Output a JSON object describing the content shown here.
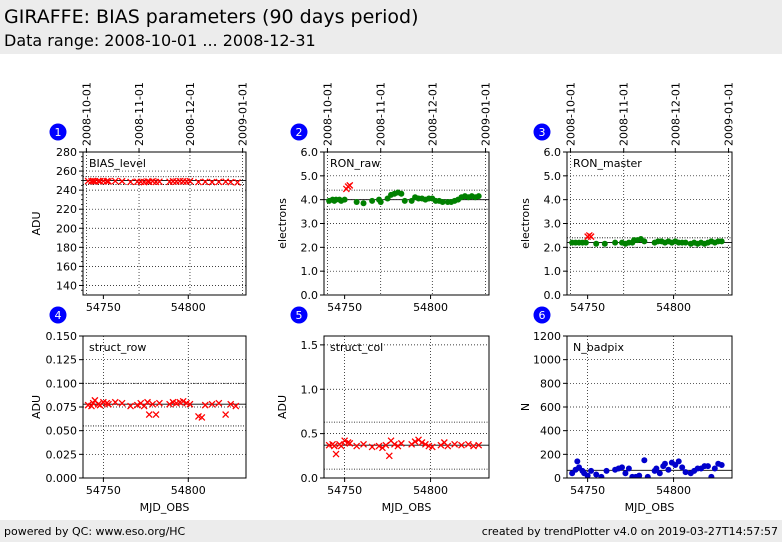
{
  "page": {
    "title": "GIRAFFE: BIAS parameters (90 days period)",
    "subtitle": "Data range: 2008-10-01 ... 2008-12-31",
    "footer_left": "powered by QC: www.eso.org/HC",
    "footer_right": "created by trendPlotter v4.0 on 2019-03-27T14:57:57"
  },
  "colors": {
    "badge": "#0000ff",
    "red": "#ff0000",
    "green": "#008000",
    "blue": "#0000cc"
  },
  "chart_data": [
    {
      "type": "scatter",
      "number": "1",
      "label": "BIAS_level",
      "ylabel": "ADU",
      "xlabel": "",
      "xlim": [
        54738,
        54834
      ],
      "ylim": [
        130,
        280
      ],
      "yticks": [
        140,
        160,
        180,
        200,
        220,
        240,
        260,
        280
      ],
      "ytick_labels": [
        "140",
        "160",
        "180",
        "200",
        "220",
        "240",
        "260",
        "280"
      ],
      "xticks": [
        54750,
        54800
      ],
      "xtick_labels": [
        "54750",
        "54800"
      ],
      "top_ticks": [
        54740,
        54771,
        54801,
        54832
      ],
      "top_tick_labels": [
        "2008-10-01",
        "2008-11-01",
        "2008-12-01",
        "2009-01-01"
      ],
      "hlines": [
        250,
        246,
        254
      ],
      "color": "#ff0000",
      "marker": "x",
      "x": [
        54741,
        54743,
        54744,
        54745,
        54747,
        54748,
        54750,
        54752,
        54753,
        54757,
        54761,
        54766,
        54770,
        54772,
        54774,
        54776,
        54777,
        54779,
        54781,
        54783,
        54789,
        54791,
        54793,
        54795,
        54797,
        54799,
        54801,
        54806,
        54810,
        54814,
        54818,
        54822,
        54825,
        54829
      ],
      "y": [
        249.5,
        249.4,
        249.6,
        249.2,
        249.5,
        249.3,
        249.6,
        249.4,
        249.2,
        249.5,
        249.3,
        248.6,
        248.9,
        248.7,
        248.4,
        249.1,
        248.8,
        249.3,
        248.6,
        248.9,
        248.7,
        249.2,
        249.0,
        249.4,
        249.2,
        249.0,
        249.3,
        248.5,
        248.7,
        248.4,
        248.6,
        248.9,
        248.3,
        248.1
      ]
    },
    {
      "type": "scatter",
      "number": "2",
      "label": "RON_raw",
      "ylabel": "electrons",
      "xlabel": "",
      "xlim": [
        54738,
        54834
      ],
      "ylim": [
        0,
        6
      ],
      "yticks": [
        0,
        1,
        2,
        3,
        4,
        5,
        6
      ],
      "ytick_labels": [
        "0.0",
        "1.0",
        "2.0",
        "3.0",
        "4.0",
        "5.0",
        "6.0"
      ],
      "xticks": [
        54750,
        54800
      ],
      "xtick_labels": [
        "54750",
        "54800"
      ],
      "top_ticks": [
        54740,
        54771,
        54801,
        54832
      ],
      "top_tick_labels": [
        "2008-10-01",
        "2008-11-01",
        "2008-12-01",
        "2009-01-01"
      ],
      "hlines": [
        4.0,
        3.6,
        4.4
      ],
      "color": "#008000",
      "marker": "o",
      "x": [
        54741,
        54743,
        54744,
        54745,
        54747,
        54748,
        54750,
        54757,
        54761,
        54766,
        54770,
        54771,
        54775,
        54777,
        54779,
        54781,
        54783,
        54785,
        54789,
        54791,
        54793,
        54795,
        54797,
        54799,
        54801,
        54803,
        54805,
        54807,
        54810,
        54812,
        54814,
        54816,
        54818,
        54820,
        54822,
        54824,
        54826,
        54828
      ],
      "y": [
        3.95,
        4.0,
        3.95,
        4.0,
        4.0,
        3.95,
        4.0,
        3.9,
        3.85,
        3.95,
        4.0,
        3.9,
        4.05,
        4.2,
        4.25,
        4.3,
        4.25,
        3.95,
        3.95,
        4.1,
        4.05,
        4.05,
        4.0,
        4.05,
        4.05,
        3.95,
        3.95,
        3.9,
        3.9,
        3.9,
        3.95,
        4.0,
        4.1,
        4.15,
        4.1,
        4.15,
        4.1,
        4.15
      ],
      "outliers": {
        "x": [
          54751,
          54752,
          54753
        ],
        "y": [
          4.45,
          4.55,
          4.6
        ],
        "color": "#ff0000",
        "marker": "x"
      }
    },
    {
      "type": "scatter",
      "number": "3",
      "label": "RON_master",
      "ylabel": "electrons",
      "xlabel": "",
      "xlim": [
        54738,
        54834
      ],
      "ylim": [
        0,
        6
      ],
      "yticks": [
        0,
        1,
        2,
        3,
        4,
        5,
        6
      ],
      "ytick_labels": [
        "0.0",
        "1.0",
        "2.0",
        "3.0",
        "4.0",
        "5.0",
        "6.0"
      ],
      "xticks": [
        54750,
        54800
      ],
      "xtick_labels": [
        "54750",
        "54800"
      ],
      "top_ticks": [
        54740,
        54771,
        54801,
        54832
      ],
      "top_tick_labels": [
        "2008-10-01",
        "2008-11-01",
        "2008-12-01",
        "2009-01-01"
      ],
      "hlines": [
        2.2,
        2.0,
        2.4
      ],
      "color": "#008000",
      "marker": "o",
      "x": [
        54741,
        54743,
        54745,
        54747,
        54749,
        54755,
        54760,
        54766,
        54770,
        54772,
        54774,
        54776,
        54777,
        54779,
        54781,
        54783,
        54789,
        54791,
        54793,
        54795,
        54797,
        54799,
        54801,
        54803,
        54805,
        54807,
        54810,
        54812,
        54814,
        54816,
        54818,
        54820,
        54822,
        54824,
        54826,
        54828
      ],
      "y": [
        2.2,
        2.2,
        2.2,
        2.2,
        2.2,
        2.15,
        2.15,
        2.2,
        2.2,
        2.15,
        2.2,
        2.2,
        2.3,
        2.3,
        2.35,
        2.25,
        2.2,
        2.25,
        2.25,
        2.2,
        2.25,
        2.2,
        2.25,
        2.2,
        2.2,
        2.2,
        2.15,
        2.2,
        2.15,
        2.2,
        2.15,
        2.2,
        2.25,
        2.2,
        2.25,
        2.25
      ],
      "outliers": {
        "x": [
          54750,
          54751,
          54752
        ],
        "y": [
          2.45,
          2.5,
          2.45
        ],
        "color": "#ff0000",
        "marker": "x"
      }
    },
    {
      "type": "scatter",
      "number": "4",
      "label": "struct_row",
      "ylabel": "ADU",
      "xlabel": "MJD_OBS",
      "xlim": [
        54738,
        54834
      ],
      "ylim": [
        0,
        0.15
      ],
      "yticks": [
        0,
        0.025,
        0.05,
        0.075,
        0.1,
        0.125,
        0.15
      ],
      "ytick_labels": [
        "0.000",
        "0.025",
        "0.050",
        "0.075",
        "0.100",
        "0.125",
        "0.150"
      ],
      "xticks": [
        54750,
        54800
      ],
      "xtick_labels": [
        "54750",
        "54800"
      ],
      "hlines": [
        0.078,
        0.055,
        0.1
      ],
      "color": "#ff0000",
      "marker": "x",
      "x": [
        54741,
        54743,
        54744,
        54745,
        54747,
        54748,
        54750,
        54752,
        54753,
        54757,
        54761,
        54766,
        54770,
        54772,
        54774,
        54776,
        54777,
        54779,
        54781,
        54783,
        54789,
        54791,
        54793,
        54795,
        54797,
        54799,
        54801,
        54806,
        54808,
        54810,
        54814,
        54818,
        54822,
        54825,
        54828
      ],
      "y": [
        0.077,
        0.076,
        0.079,
        0.082,
        0.078,
        0.077,
        0.08,
        0.079,
        0.078,
        0.08,
        0.079,
        0.076,
        0.077,
        0.079,
        0.076,
        0.08,
        0.067,
        0.078,
        0.067,
        0.079,
        0.078,
        0.08,
        0.079,
        0.08,
        0.081,
        0.079,
        0.078,
        0.065,
        0.064,
        0.077,
        0.078,
        0.079,
        0.067,
        0.078,
        0.076
      ]
    },
    {
      "type": "scatter",
      "number": "5",
      "label": "struct_col",
      "ylabel": "ADU",
      "xlabel": "MJD_OBS",
      "xlim": [
        54738,
        54834
      ],
      "ylim": [
        0,
        1.6
      ],
      "yticks": [
        0,
        0.5,
        1.0,
        1.5
      ],
      "ytick_labels": [
        "0.0",
        "0.5",
        "1.0",
        "1.5"
      ],
      "xticks": [
        54750,
        54800
      ],
      "xtick_labels": [
        "54750",
        "54800"
      ],
      "hlines": [
        0.37,
        0.1,
        0.63
      ],
      "color": "#ff0000",
      "marker": "x",
      "x": [
        54741,
        54743,
        54744,
        54745,
        54747,
        54748,
        54750,
        54752,
        54753,
        54757,
        54761,
        54766,
        54770,
        54772,
        54774,
        54776,
        54777,
        54779,
        54781,
        54783,
        54789,
        54791,
        54793,
        54795,
        54797,
        54799,
        54801,
        54806,
        54808,
        54810,
        54814,
        54818,
        54822,
        54825,
        54828
      ],
      "y": [
        0.37,
        0.38,
        0.36,
        0.27,
        0.38,
        0.36,
        0.42,
        0.4,
        0.39,
        0.36,
        0.38,
        0.35,
        0.36,
        0.34,
        0.37,
        0.25,
        0.42,
        0.38,
        0.36,
        0.39,
        0.38,
        0.41,
        0.43,
        0.4,
        0.38,
        0.36,
        0.35,
        0.37,
        0.4,
        0.36,
        0.38,
        0.37,
        0.38,
        0.36,
        0.37
      ]
    },
    {
      "type": "scatter",
      "number": "6",
      "label": "N_badpix",
      "ylabel": "N",
      "xlabel": "MJD_OBS",
      "xlim": [
        54738,
        54834
      ],
      "ylim": [
        0,
        1200
      ],
      "yticks": [
        0,
        200,
        400,
        600,
        800,
        1000,
        1200
      ],
      "ytick_labels": [
        "0",
        "200",
        "400",
        "600",
        "800",
        "1000",
        "1200"
      ],
      "xticks": [
        54750,
        54800
      ],
      "xtick_labels": [
        "54750",
        "54800"
      ],
      "hlines": [
        65
      ],
      "color": "#0000cc",
      "marker": "o",
      "x": [
        54741,
        54743,
        54744,
        54745,
        54747,
        54748,
        54750,
        54752,
        54755,
        54758,
        54761,
        54766,
        54768,
        54770,
        54772,
        54774,
        54776,
        54778,
        54780,
        54783,
        54785,
        54789,
        54790,
        54792,
        54794,
        54795,
        54797,
        54799,
        54801,
        54803,
        54805,
        54807,
        54810,
        54812,
        54814,
        54816,
        54818,
        54820,
        54822,
        54824,
        54826,
        54828
      ],
      "y": [
        40,
        70,
        140,
        90,
        60,
        40,
        20,
        60,
        30,
        10,
        60,
        70,
        80,
        90,
        40,
        80,
        10,
        10,
        20,
        150,
        10,
        60,
        80,
        40,
        100,
        120,
        70,
        130,
        110,
        140,
        90,
        50,
        40,
        60,
        80,
        80,
        100,
        100,
        10,
        80,
        120,
        110
      ]
    }
  ]
}
